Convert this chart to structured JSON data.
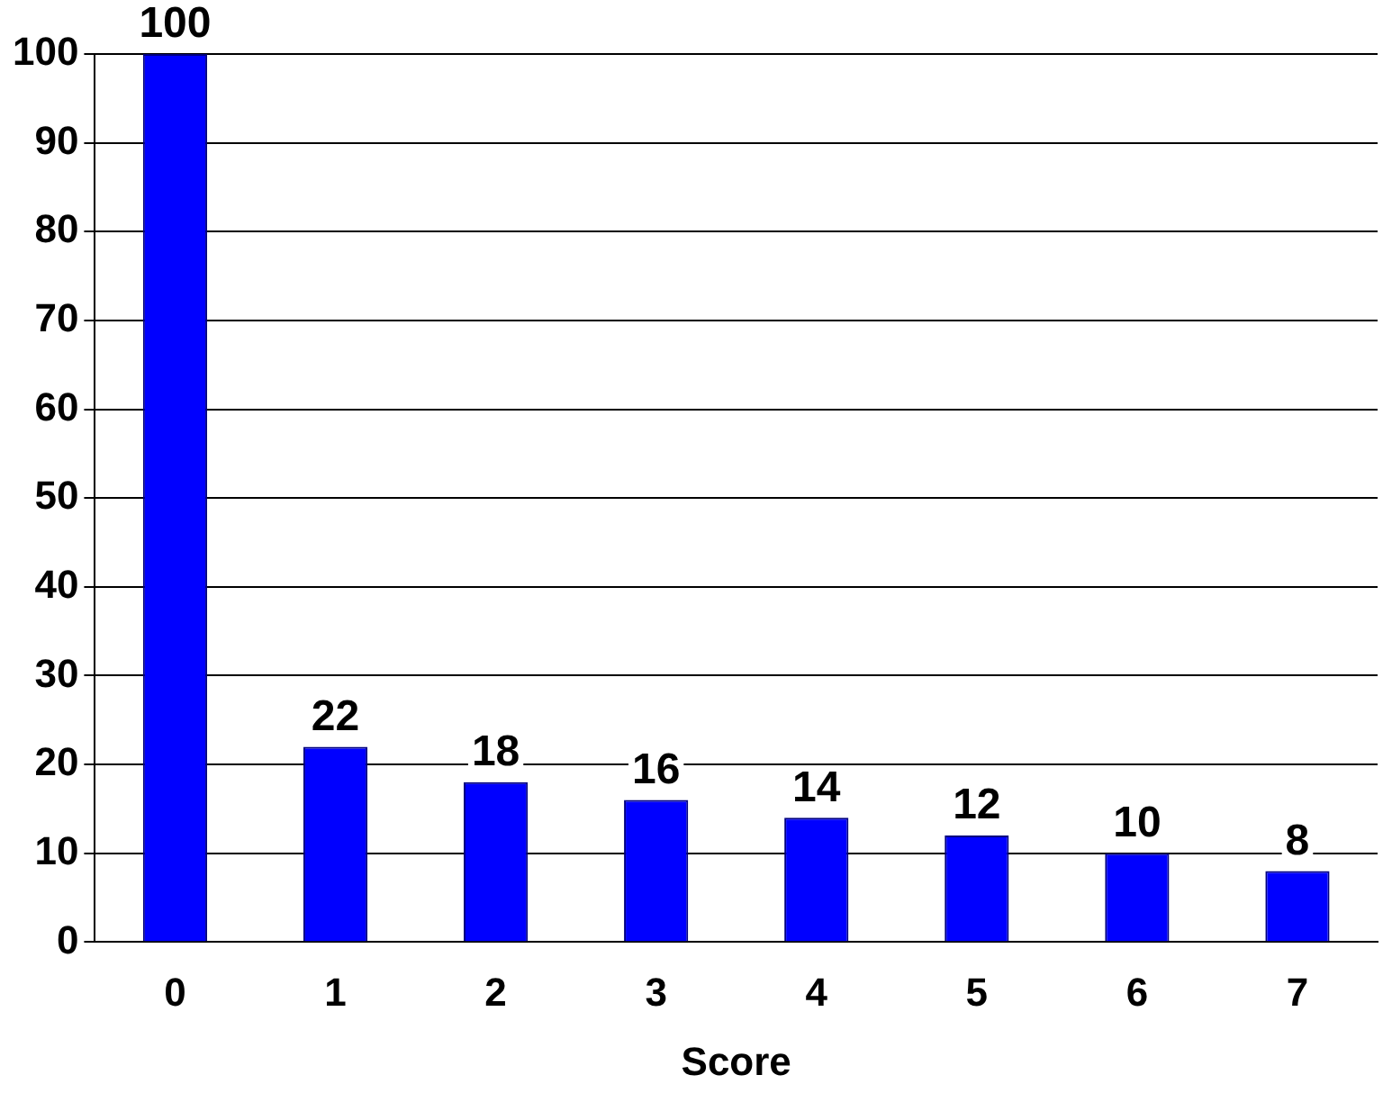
{
  "chart_data": {
    "type": "bar",
    "xlabel": "Score",
    "categories": [
      "0",
      "1",
      "2",
      "3",
      "4",
      "5",
      "6",
      "7"
    ],
    "values": [
      100,
      22,
      18,
      16,
      14,
      12,
      10,
      8
    ],
    "color": "#0000ff",
    "ylim": [
      0,
      100
    ],
    "yticks": [
      0,
      10,
      20,
      30,
      40,
      50,
      60,
      70,
      80,
      90,
      100
    ],
    "grid": "y",
    "data_labels": true
  }
}
